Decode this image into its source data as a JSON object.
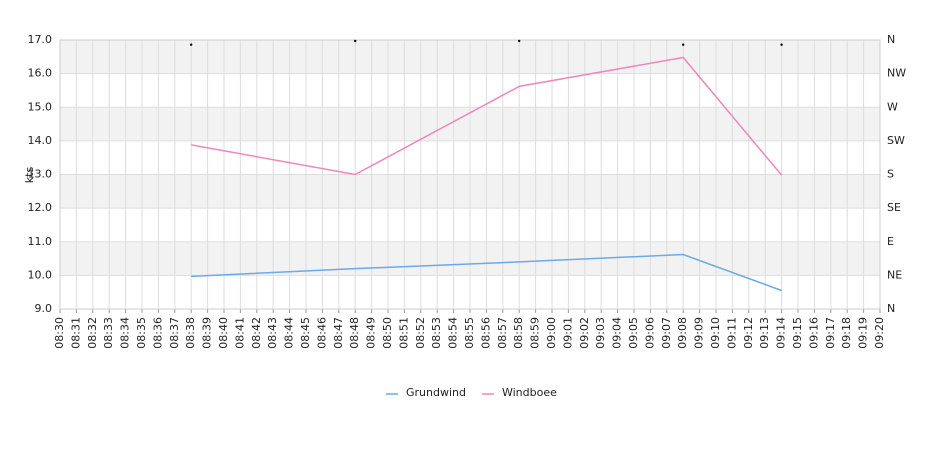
{
  "chart_data": {
    "type": "line",
    "y_label": "kts",
    "categories": [
      "08:30",
      "08:31",
      "08:32",
      "08:33",
      "08:34",
      "08:35",
      "08:36",
      "08:37",
      "08:38",
      "08:39",
      "08:40",
      "08:41",
      "08:42",
      "08:43",
      "08:44",
      "08:45",
      "08:46",
      "08:47",
      "08:48",
      "08:49",
      "08:50",
      "08:51",
      "08:52",
      "08:53",
      "08:54",
      "08:55",
      "08:56",
      "08:57",
      "08:58",
      "08:59",
      "09:00",
      "09:01",
      "09:02",
      "09:03",
      "09:04",
      "09:05",
      "09:06",
      "09:07",
      "09:08",
      "09:09",
      "09:10",
      "09:11",
      "09:12",
      "09:13",
      "09:14",
      "09:15",
      "09:16",
      "09:17",
      "09:18",
      "09:19",
      "09:20"
    ],
    "series": [
      {
        "name": "Grundwind",
        "color": "#6aaae8",
        "x": [
          "08:38",
          "08:48",
          "08:58",
          "09:08",
          "09:14"
        ],
        "values": [
          9.97,
          10.2,
          10.4,
          10.62,
          9.55
        ]
      },
      {
        "name": "Windboee",
        "color": "#ee88bb",
        "x": [
          "08:38",
          "08:48",
          "08:58",
          "09:08",
          "09:14"
        ],
        "values": [
          13.88,
          13.0,
          15.62,
          16.48,
          12.98
        ]
      }
    ],
    "direction_markers": {
      "axis": "y2",
      "color": "#000000",
      "x": [
        "08:38",
        "08:48",
        "08:58",
        "09:08",
        "09:14"
      ],
      "values": [
        355,
        360,
        360,
        355,
        355
      ]
    },
    "ylim": [
      9,
      17
    ],
    "yticks": [
      {
        "value": 9,
        "label": "9.0"
      },
      {
        "value": 10,
        "label": "10.0"
      },
      {
        "value": 11,
        "label": "11.0"
      },
      {
        "value": 12,
        "label": "12.0"
      },
      {
        "value": 13,
        "label": "13.0"
      },
      {
        "value": 14,
        "label": "14.0"
      },
      {
        "value": 15,
        "label": "15.0"
      },
      {
        "value": 16,
        "label": "16.0"
      },
      {
        "value": 17,
        "label": "17.0"
      }
    ],
    "y2lim": [
      0,
      360
    ],
    "y2ticks": [
      {
        "value": 0,
        "label": "N"
      },
      {
        "value": 45,
        "label": "NE"
      },
      {
        "value": 90,
        "label": "E"
      },
      {
        "value": 135,
        "label": "SE"
      },
      {
        "value": 180,
        "label": "S"
      },
      {
        "value": 225,
        "label": "SW"
      },
      {
        "value": 270,
        "label": "W"
      },
      {
        "value": 315,
        "label": "NW"
      },
      {
        "value": 360,
        "label": "N"
      }
    ],
    "grid": true,
    "band_color": "#f2f2f2",
    "legend": "bottom"
  }
}
